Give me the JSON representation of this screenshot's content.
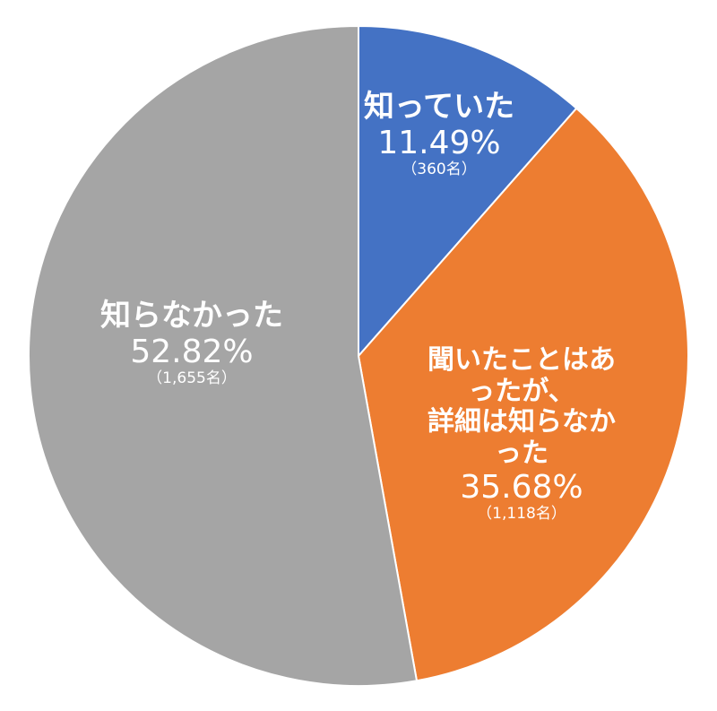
{
  "chart_data": {
    "type": "pie",
    "categories": [
      "知っていた",
      "聞いたことはあったが、\n詳細は知らなかった",
      "知らなかった"
    ],
    "values": [
      11.49,
      35.68,
      52.82
    ],
    "value_labels": [
      "11.49%",
      "35.68%",
      "52.82%"
    ],
    "count_labels": [
      "（360名）",
      "（1,118名）",
      "（1,655名）"
    ],
    "colors": [
      "#4472c4",
      "#ed7d31",
      "#a5a5a5"
    ]
  }
}
